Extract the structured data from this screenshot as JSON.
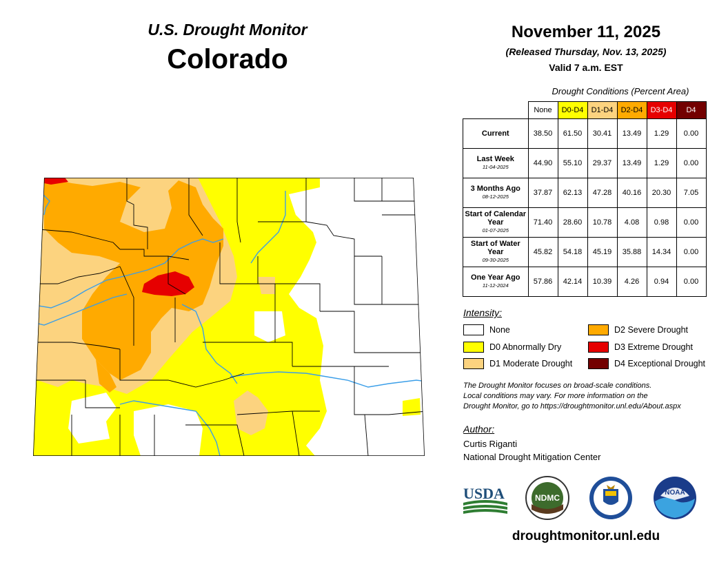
{
  "header": {
    "brand": "U.S. Drought Monitor",
    "state": "Colorado",
    "date": "November 11, 2025",
    "released": "(Released Thursday, Nov. 13, 2025)",
    "valid": "Valid 7 a.m. EST"
  },
  "table": {
    "title": "Drought Conditions (Percent Area)",
    "columns": [
      {
        "label": "None",
        "color": "#ffffff",
        "text": "#000000"
      },
      {
        "label": "D0-D4",
        "color": "#ffff00",
        "text": "#000000"
      },
      {
        "label": "D1-D4",
        "color": "#fcd37f",
        "text": "#000000"
      },
      {
        "label": "D2-D4",
        "color": "#ffaa00",
        "text": "#000000"
      },
      {
        "label": "D3-D4",
        "color": "#e60000",
        "text": "#ffffff"
      },
      {
        "label": "D4",
        "color": "#730000",
        "text": "#ffffff"
      }
    ],
    "rows": [
      {
        "label": "Current",
        "date": "",
        "values": [
          "38.50",
          "61.50",
          "30.41",
          "13.49",
          "1.29",
          "0.00"
        ]
      },
      {
        "label": "Last Week",
        "date": "11-04-2025",
        "values": [
          "44.90",
          "55.10",
          "29.37",
          "13.49",
          "1.29",
          "0.00"
        ]
      },
      {
        "label": "3 Months Ago",
        "date": "08-12-2025",
        "values": [
          "37.87",
          "62.13",
          "47.28",
          "40.16",
          "20.30",
          "7.05"
        ]
      },
      {
        "label": "Start of Calendar Year",
        "date": "01-07-2025",
        "values": [
          "71.40",
          "28.60",
          "10.78",
          "4.08",
          "0.98",
          "0.00"
        ]
      },
      {
        "label": "Start of Water Year",
        "date": "09-30-2025",
        "values": [
          "45.82",
          "54.18",
          "45.19",
          "35.88",
          "14.34",
          "0.00"
        ]
      },
      {
        "label": "One Year Ago",
        "date": "11-12-2024",
        "values": [
          "57.86",
          "42.14",
          "10.39",
          "4.26",
          "0.94",
          "0.00"
        ]
      }
    ]
  },
  "legend": {
    "title": "Intensity:",
    "items": [
      {
        "label": "None",
        "color": "#ffffff"
      },
      {
        "label": "D0 Abnormally Dry",
        "color": "#ffff00"
      },
      {
        "label": "D1 Moderate Drought",
        "color": "#fcd37f"
      },
      {
        "label": "D2 Severe Drought",
        "color": "#ffaa00"
      },
      {
        "label": "D3 Extreme Drought",
        "color": "#e60000"
      },
      {
        "label": "D4 Exceptional Drought",
        "color": "#730000"
      }
    ]
  },
  "note": [
    "The Drought Monitor focuses on broad-scale conditions.",
    "Local conditions may vary. For more information on the",
    "Drought Monitor, go to https://droughtmonitor.unl.edu/About.aspx"
  ],
  "author": {
    "title": "Author:",
    "name": "Curtis Riganti",
    "org": "National Drought Mitigation Center"
  },
  "logos": {
    "usda": "USDA",
    "ndmc": "NDMC",
    "noaa": "NOAA"
  },
  "url": "droughtmonitor.unl.edu"
}
